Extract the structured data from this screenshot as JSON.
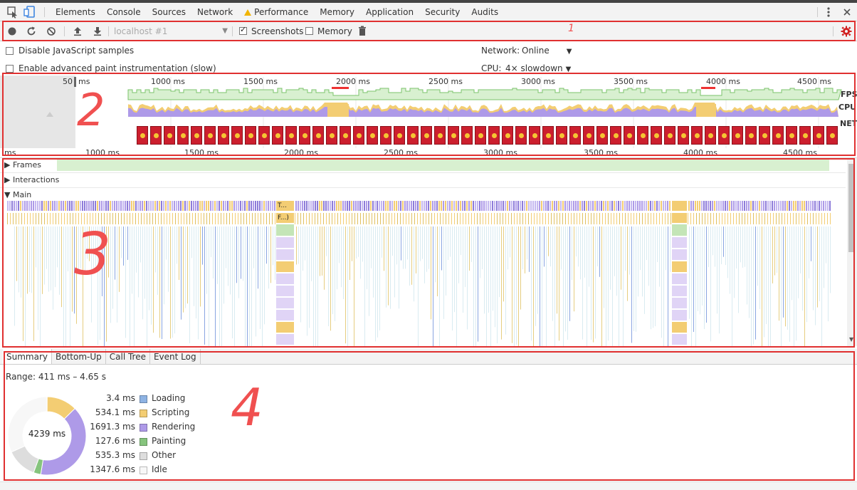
{
  "devtools": {
    "tabs": [
      {
        "label": "Elements"
      },
      {
        "label": "Console"
      },
      {
        "label": "Sources"
      },
      {
        "label": "Network"
      },
      {
        "label": "Performance",
        "warning": true
      },
      {
        "label": "Memory"
      },
      {
        "label": "Application"
      },
      {
        "label": "Security"
      },
      {
        "label": "Audits"
      }
    ],
    "icons": {
      "inspect": "inspect-element-icon",
      "device": "device-toolbar-icon",
      "more": "more-vertical-icon"
    }
  },
  "toolbar": {
    "target": "localhost #1",
    "screenshots_label": "Screenshots",
    "screenshots_checked": true,
    "memory_label": "Memory",
    "memory_checked": false,
    "icons": [
      "record-icon",
      "reload-icon",
      "clear-icon",
      "upload-icon",
      "download-icon",
      "trash-icon",
      "gear-icon"
    ]
  },
  "settings": {
    "disable_js_samples": "Disable JavaScript samples",
    "enable_paint": "Enable advanced paint instrumentation (slow)",
    "network_label": "Network:",
    "network_value": "Online",
    "cpu_label": "CPU:",
    "cpu_value": "4× slowdown"
  },
  "overview": {
    "ruler_ticks": [
      "50",
      "ms",
      "1000 ms",
      "1500 ms",
      "2000 ms",
      "2500 ms",
      "3000 ms",
      "3500 ms",
      "4000 ms",
      "4500 ms"
    ],
    "fps_label": "FPS",
    "cpu_label": "CPU",
    "net_label": "NET",
    "bottom_ticks": [
      "ms",
      "1000 ms",
      "1500 ms",
      "2000 ms",
      "2500 ms",
      "3000 ms",
      "3500 ms",
      "4000 ms",
      "4500 ms"
    ]
  },
  "flame": {
    "tracks": [
      "Frames",
      "Interactions",
      "Main"
    ],
    "task_labels": [
      "T...",
      "F...)"
    ]
  },
  "summary": {
    "tabs": [
      "Summary",
      "Bottom-Up",
      "Call Tree",
      "Event Log"
    ],
    "range": "Range: 411 ms – 4.65 s",
    "total": "4239 ms",
    "items": [
      {
        "value": "3.4 ms",
        "label": "Loading",
        "color": "#8eb3e3",
        "ms": 3.4
      },
      {
        "value": "534.1 ms",
        "label": "Scripting",
        "color": "#f3cd73",
        "ms": 534.1
      },
      {
        "value": "1691.3 ms",
        "label": "Rendering",
        "color": "#ae9ae8",
        "ms": 1691.3
      },
      {
        "value": "127.6 ms",
        "label": "Painting",
        "color": "#86c47d",
        "ms": 127.6
      },
      {
        "value": "535.3 ms",
        "label": "Other",
        "color": "#dddddd",
        "ms": 535.3
      },
      {
        "value": "1347.6 ms",
        "label": "Idle",
        "color": "#f7f7f7",
        "ms": 1347.6
      }
    ]
  },
  "annotations": [
    "1",
    "2",
    "3",
    "4"
  ]
}
